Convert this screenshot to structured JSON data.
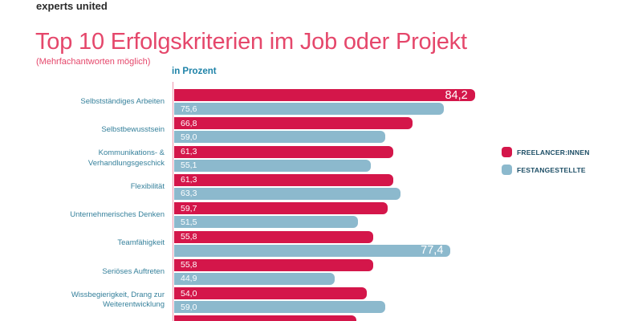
{
  "logo_text": "experts united",
  "header": {
    "title": "Top 10 Erfolgskriterien im Job oder Projekt",
    "subtitle": "(Mehrfachantworten möglich)",
    "unit_label": "in Prozent"
  },
  "colors": {
    "freelancer": "#d4164a",
    "festangestellte": "#8cb9cd",
    "title_text": "#e5476b",
    "category_label_text": "#35809b",
    "unit_label_text": "#1f83a8",
    "legend_text": "#1d4e66",
    "axis_line": "rgba(213,22,74,0.45)",
    "bar_value_text": "#ffffff"
  },
  "legend": {
    "items": [
      {
        "label": "FREELANCER:INNEN",
        "color_key": "freelancer"
      },
      {
        "label": "FESTANGESTELLTE",
        "color_key": "festangestellte"
      }
    ]
  },
  "chart_data": {
    "type": "bar",
    "orientation": "horizontal",
    "unit": "percent",
    "xlim": [
      0,
      100
    ],
    "value_label_decimal_separator": ",",
    "legend_position": "right",
    "grid": false,
    "categories": [
      "Selbstständiges Arbeiten",
      "Selbstbewusstsein",
      "Kommunikations- &\nVerhandlungsgeschick",
      "Flexibilität",
      "Unternehmerisches Denken",
      "Teamfähigkeit",
      "Seriöses Auftreten",
      "Wissbegierigkeit, Drang zur\nWeiterentwicklung"
    ],
    "series": [
      {
        "name": "FREELANCER:INNEN",
        "color_key": "freelancer",
        "values": [
          84.2,
          66.8,
          61.3,
          61.3,
          59.7,
          55.8,
          55.8,
          54.0
        ]
      },
      {
        "name": "FESTANGESTELLTE",
        "color_key": "festangestellte",
        "values": [
          75.6,
          59.0,
          55.1,
          63.3,
          51.5,
          77.4,
          44.9,
          59.0
        ]
      }
    ],
    "value_labels": {
      "FREELANCER:INNEN": [
        "84,2",
        "66,8",
        "61,3",
        "61,3",
        "59,7",
        "55,8",
        "55,8",
        "54,0"
      ],
      "FESTANGESTELLTE": [
        "75,6",
        "59,0",
        "55,1",
        "63,3",
        "51,5",
        "77,4",
        "44,9",
        "59,0"
      ]
    },
    "max_value_labels_right_aligned": [
      "84,2",
      "77,4"
    ],
    "partial_next_row": {
      "series_index": 0,
      "approx_value": 51,
      "clipped_at_bottom": true,
      "label_visible": false
    }
  }
}
